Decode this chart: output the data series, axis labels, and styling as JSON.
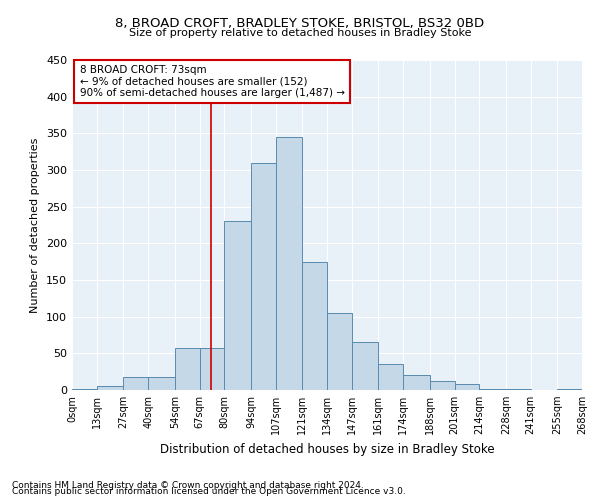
{
  "title1": "8, BROAD CROFT, BRADLEY STOKE, BRISTOL, BS32 0BD",
  "title2": "Size of property relative to detached houses in Bradley Stoke",
  "xlabel": "Distribution of detached houses by size in Bradley Stoke",
  "ylabel": "Number of detached properties",
  "footnote1": "Contains HM Land Registry data © Crown copyright and database right 2024.",
  "footnote2": "Contains public sector information licensed under the Open Government Licence v3.0.",
  "bar_labels": [
    "0sqm",
    "13sqm",
    "27sqm",
    "40sqm",
    "54sqm",
    "67sqm",
    "80sqm",
    "94sqm",
    "107sqm",
    "121sqm",
    "134sqm",
    "147sqm",
    "161sqm",
    "174sqm",
    "188sqm",
    "201sqm",
    "214sqm",
    "228sqm",
    "241sqm",
    "255sqm",
    "268sqm"
  ],
  "bar_values": [
    1,
    5,
    18,
    18,
    57,
    57,
    230,
    310,
    345,
    175,
    105,
    65,
    35,
    20,
    12,
    8,
    2,
    1,
    0,
    1
  ],
  "bin_edges": [
    0,
    13,
    27,
    40,
    54,
    67,
    80,
    94,
    107,
    121,
    134,
    147,
    161,
    174,
    188,
    201,
    214,
    228,
    241,
    255,
    268
  ],
  "bar_color": "#c5d8e8",
  "bar_edgecolor": "#5a8ab0",
  "background_color": "#e8f0f8",
  "grid_color": "#ffffff",
  "vline_x": 73,
  "vline_color": "#cc0000",
  "annotation_text": "8 BROAD CROFT: 73sqm\n← 9% of detached houses are smaller (152)\n90% of semi-detached houses are larger (1,487) →",
  "annotation_box_color": "#ffffff",
  "annotation_border_color": "#cc0000",
  "ylim": [
    0,
    450
  ],
  "yticks": [
    0,
    50,
    100,
    150,
    200,
    250,
    300,
    350,
    400,
    450
  ]
}
